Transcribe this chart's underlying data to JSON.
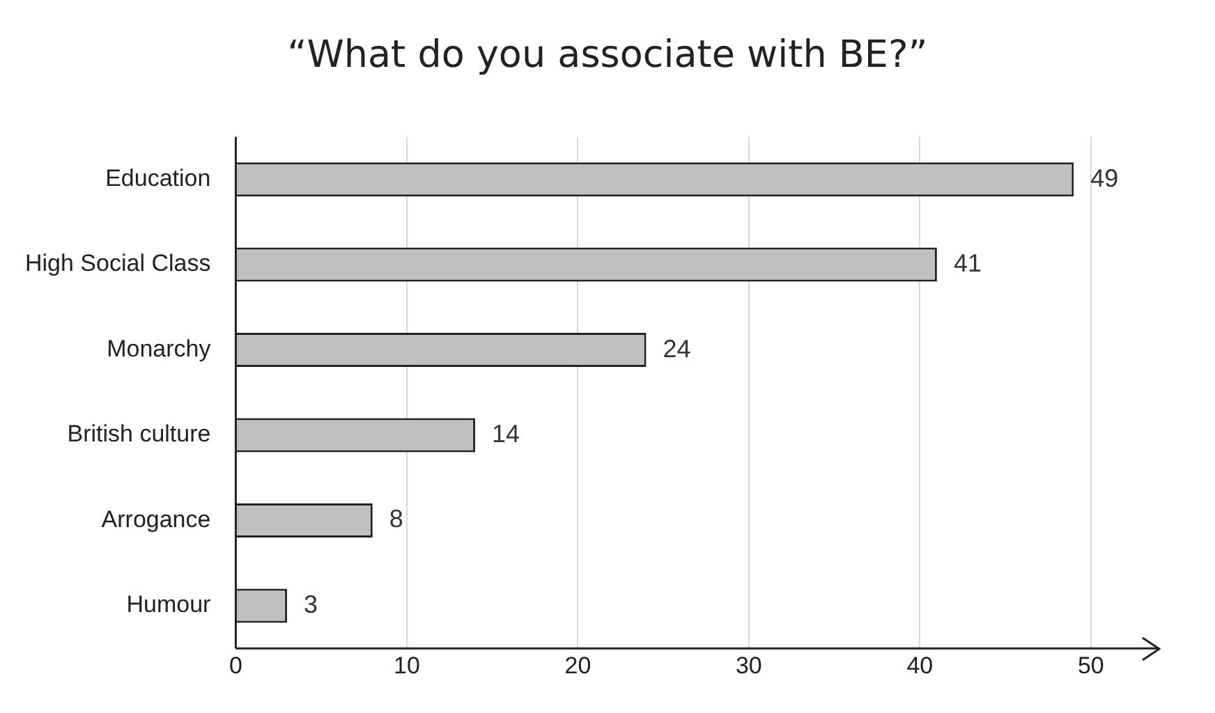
{
  "chart_data": {
    "type": "bar",
    "orientation": "horizontal",
    "title": "“What do you associate with BE?”",
    "categories": [
      "Education",
      "High Social Class",
      "Monarchy",
      "British culture",
      "Arrogance",
      "Humour"
    ],
    "values": [
      49,
      41,
      24,
      14,
      8,
      3
    ],
    "color": "#c0c0c0",
    "xlim": [
      0,
      54
    ],
    "xticks": [
      0,
      10,
      20,
      30,
      40,
      50
    ],
    "grid": "x",
    "data_labels": true
  }
}
